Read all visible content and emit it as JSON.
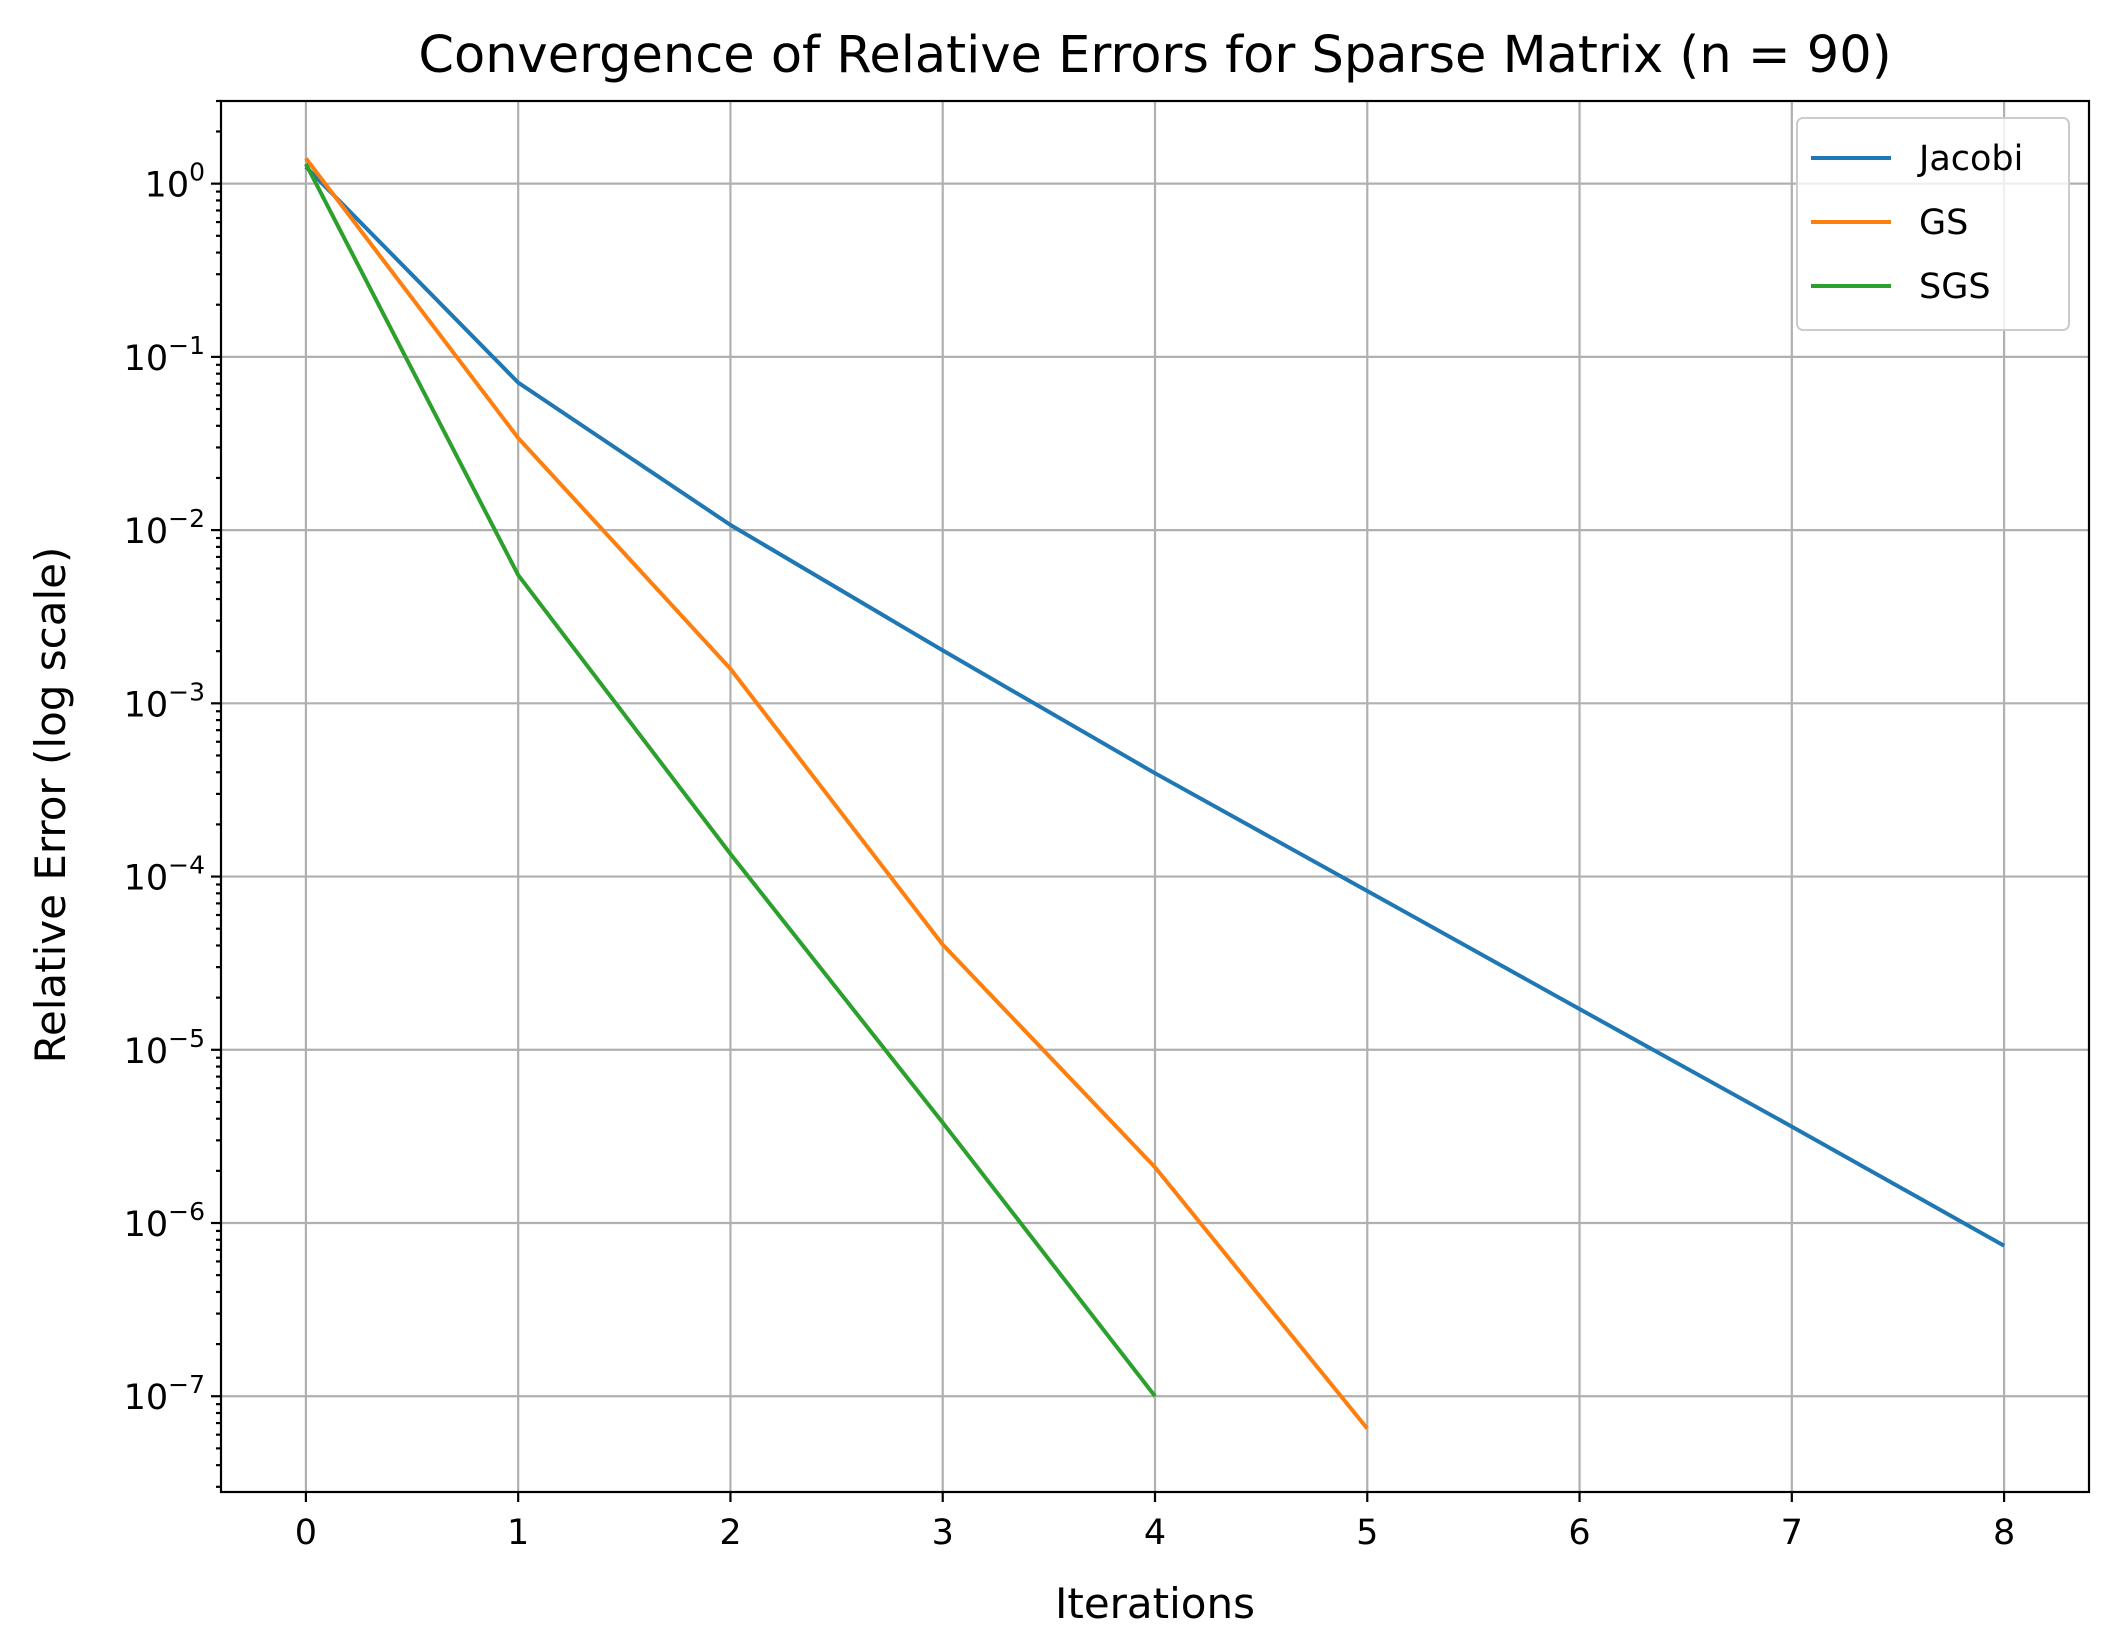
{
  "chart_data": {
    "type": "line",
    "title": "Convergence of Relative Errors for Sparse Matrix (n = 90)",
    "xlabel": "Iterations",
    "ylabel": "Relative Error (log scale)",
    "xlim": [
      -0.4,
      8.4
    ],
    "ylim": [
      2.8e-08,
      3.0
    ],
    "yscale": "log",
    "x_ticks": [
      0,
      1,
      2,
      3,
      4,
      5,
      6,
      7,
      8
    ],
    "x_tick_labels": [
      "0",
      "1",
      "2",
      "3",
      "4",
      "5",
      "6",
      "7",
      "8"
    ],
    "y_ticks": [
      1,
      0.1,
      0.01,
      0.001,
      0.0001,
      1e-05,
      1e-06,
      1e-07
    ],
    "y_tick_exponents": [
      "0",
      "−1",
      "−2",
      "−3",
      "−4",
      "−5",
      "−6",
      "−7"
    ],
    "y_tick_base": "10",
    "grid": true,
    "legend_position": "top-right",
    "series": [
      {
        "name": "Jacobi",
        "color": "#1f77b4",
        "x": [
          0,
          1,
          2,
          3,
          4,
          5,
          6,
          7,
          8
        ],
        "values": [
          1.25,
          0.071,
          0.0107,
          0.00202,
          0.000395,
          8.25e-05,
          1.72e-05,
          3.6e-06,
          7.4e-07
        ]
      },
      {
        "name": "GS",
        "color": "#ff7f0e",
        "x": [
          0,
          1,
          2,
          3,
          4,
          5
        ],
        "values": [
          1.4,
          0.034,
          0.00158,
          4.05e-05,
          2.1e-06,
          6.5e-08
        ]
      },
      {
        "name": "SGS",
        "color": "#2ca02c",
        "x": [
          0,
          1,
          2,
          3,
          4
        ],
        "values": [
          1.3,
          0.0055,
          0.000135,
          3.8e-06,
          1e-07
        ]
      }
    ]
  }
}
